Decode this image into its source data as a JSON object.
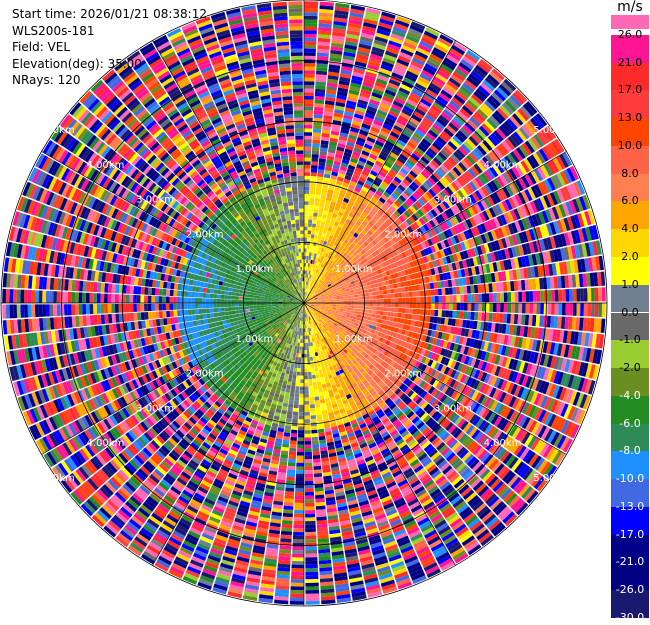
{
  "header": {
    "start_time": "Start time: 2026/01/21 08:38:12",
    "instrument": "WLS200s-181",
    "field": "Field: VEL",
    "elevation": "Elevation(deg): 35.00",
    "nrays": "NRays: 120"
  },
  "chart_data": {
    "type": "heatmap",
    "projection": "polar-ppi",
    "field": "VEL",
    "units": "m/s",
    "elevation_deg": 35.0,
    "n_rays": 120,
    "range_rings_km": [
      1,
      2,
      3,
      4,
      5
    ],
    "ring_labels": [
      "1.00km",
      "2.00km",
      "3.00km",
      "4.00km",
      "5.00km"
    ],
    "max_range_km": 5.0,
    "valid_range_km": 2.1,
    "grid": true,
    "colorbar": {
      "unit_label": "m/s",
      "position": "right",
      "ticks": [
        "26.0",
        "21.0",
        "17.0",
        "13.0",
        "10.0",
        "8.0",
        "6.0",
        "4.0",
        "2.0",
        "1.0",
        "0.0",
        "-1.0",
        "-2.0",
        "-4.0",
        "-6.0",
        "-8.0",
        "-10.0",
        "-13.0",
        "-17.0",
        "-21.0",
        "-26.0",
        "-30.0"
      ],
      "colors": [
        "#ff1493",
        "#ff2a2a",
        "#ff3b3b",
        "#ff4500",
        "#ff6347",
        "#ff7f50",
        "#ffa500",
        "#ffd700",
        "#ffff00",
        "#708090",
        "#696969",
        "#9acd32",
        "#6b8e23",
        "#228b22",
        "#2e8b57",
        "#1e90ff",
        "#4169e1",
        "#0000ff",
        "#00008b",
        "#000080",
        "#191970"
      ],
      "top_color": "#ff69b4"
    },
    "wind_pattern": {
      "description_values": "approaching on west side (negative), receding on east side (positive)",
      "west_velocity": -8.0,
      "east_velocity": 10.0
    }
  }
}
